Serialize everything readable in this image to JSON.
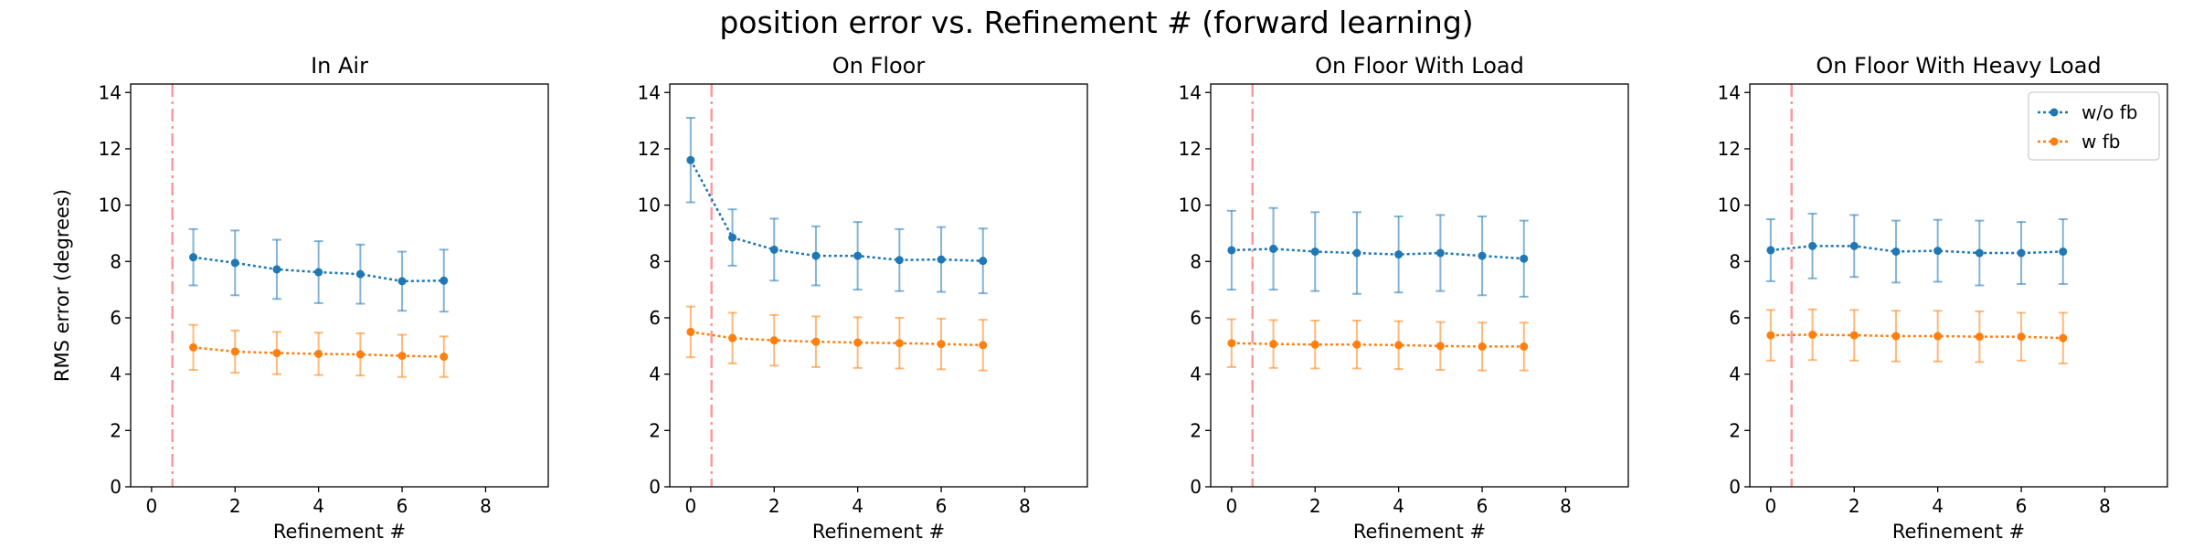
{
  "suptitle": "position error vs. Refinement # (forward learning)",
  "colors": {
    "wo_fb": "#1f77b4",
    "w_fb": "#ff7f0e",
    "vline": "#ff9999"
  },
  "chart_data": [
    {
      "type": "line",
      "title": "In Air",
      "xlabel": "Refinement #",
      "ylabel": "RMS error (degrees)",
      "xlim": [
        -0.5,
        9.5
      ],
      "ylim": [
        0,
        14.3
      ],
      "xticks": [
        0,
        2,
        4,
        6,
        8
      ],
      "yticks": [
        0,
        2,
        4,
        6,
        8,
        10,
        12,
        14
      ],
      "vline_x": 0.5,
      "legend": false,
      "series": [
        {
          "name": "w/o fb",
          "x": [
            1,
            2,
            3,
            4,
            5,
            6,
            7
          ],
          "y": [
            8.15,
            7.95,
            7.72,
            7.62,
            7.55,
            7.3,
            7.32
          ],
          "err": [
            1.0,
            1.15,
            1.05,
            1.1,
            1.05,
            1.05,
            1.1
          ]
        },
        {
          "name": "w fb",
          "x": [
            1,
            2,
            3,
            4,
            5,
            6,
            7
          ],
          "y": [
            4.95,
            4.8,
            4.75,
            4.72,
            4.7,
            4.65,
            4.62
          ],
          "err": [
            0.8,
            0.75,
            0.75,
            0.75,
            0.75,
            0.75,
            0.72
          ]
        }
      ]
    },
    {
      "type": "line",
      "title": "On Floor",
      "xlabel": "Refinement #",
      "ylabel": "",
      "xlim": [
        -0.5,
        9.5
      ],
      "ylim": [
        0,
        14.3
      ],
      "xticks": [
        0,
        2,
        4,
        6,
        8
      ],
      "yticks": [
        0,
        2,
        4,
        6,
        8,
        10,
        12,
        14
      ],
      "vline_x": 0.5,
      "legend": false,
      "series": [
        {
          "name": "w/o fb",
          "x": [
            0,
            1,
            2,
            3,
            4,
            5,
            6,
            7
          ],
          "y": [
            11.6,
            8.85,
            8.42,
            8.2,
            8.2,
            8.05,
            8.07,
            8.02
          ],
          "err": [
            1.5,
            1.0,
            1.1,
            1.05,
            1.2,
            1.1,
            1.15,
            1.15
          ]
        },
        {
          "name": "w fb",
          "x": [
            0,
            1,
            2,
            3,
            4,
            5,
            6,
            7
          ],
          "y": [
            5.5,
            5.28,
            5.2,
            5.15,
            5.12,
            5.1,
            5.07,
            5.03
          ],
          "err": [
            0.9,
            0.9,
            0.9,
            0.9,
            0.9,
            0.9,
            0.9,
            0.9
          ]
        }
      ]
    },
    {
      "type": "line",
      "title": "On Floor With Load",
      "xlabel": "Refinement #",
      "ylabel": "",
      "xlim": [
        -0.5,
        9.5
      ],
      "ylim": [
        0,
        14.3
      ],
      "xticks": [
        0,
        2,
        4,
        6,
        8
      ],
      "yticks": [
        0,
        2,
        4,
        6,
        8,
        10,
        12,
        14
      ],
      "vline_x": 0.5,
      "legend": false,
      "series": [
        {
          "name": "w/o fb",
          "x": [
            0,
            1,
            2,
            3,
            4,
            5,
            6,
            7
          ],
          "y": [
            8.4,
            8.45,
            8.35,
            8.3,
            8.25,
            8.3,
            8.2,
            8.1
          ],
          "err": [
            1.4,
            1.45,
            1.4,
            1.45,
            1.35,
            1.35,
            1.4,
            1.35
          ]
        },
        {
          "name": "w fb",
          "x": [
            0,
            1,
            2,
            3,
            4,
            5,
            6,
            7
          ],
          "y": [
            5.1,
            5.07,
            5.05,
            5.05,
            5.03,
            5.0,
            4.98,
            4.98
          ],
          "err": [
            0.85,
            0.85,
            0.85,
            0.85,
            0.85,
            0.85,
            0.85,
            0.85
          ]
        }
      ]
    },
    {
      "type": "line",
      "title": "On Floor With Heavy Load",
      "xlabel": "Refinement #",
      "ylabel": "",
      "xlim": [
        -0.5,
        9.5
      ],
      "ylim": [
        0,
        14.3
      ],
      "xticks": [
        0,
        2,
        4,
        6,
        8
      ],
      "yticks": [
        0,
        2,
        4,
        6,
        8,
        10,
        12,
        14
      ],
      "vline_x": 0.5,
      "legend": true,
      "legend_loc": "upper-right",
      "series": [
        {
          "name": "w/o fb",
          "x": [
            0,
            1,
            2,
            3,
            4,
            5,
            6,
            7
          ],
          "y": [
            8.4,
            8.55,
            8.55,
            8.35,
            8.38,
            8.3,
            8.3,
            8.35
          ],
          "err": [
            1.1,
            1.15,
            1.1,
            1.1,
            1.1,
            1.15,
            1.1,
            1.15
          ]
        },
        {
          "name": "w fb",
          "x": [
            0,
            1,
            2,
            3,
            4,
            5,
            6,
            7
          ],
          "y": [
            5.38,
            5.4,
            5.38,
            5.35,
            5.35,
            5.33,
            5.33,
            5.28
          ],
          "err": [
            0.9,
            0.9,
            0.9,
            0.9,
            0.9,
            0.9,
            0.85,
            0.9
          ]
        }
      ]
    }
  ]
}
